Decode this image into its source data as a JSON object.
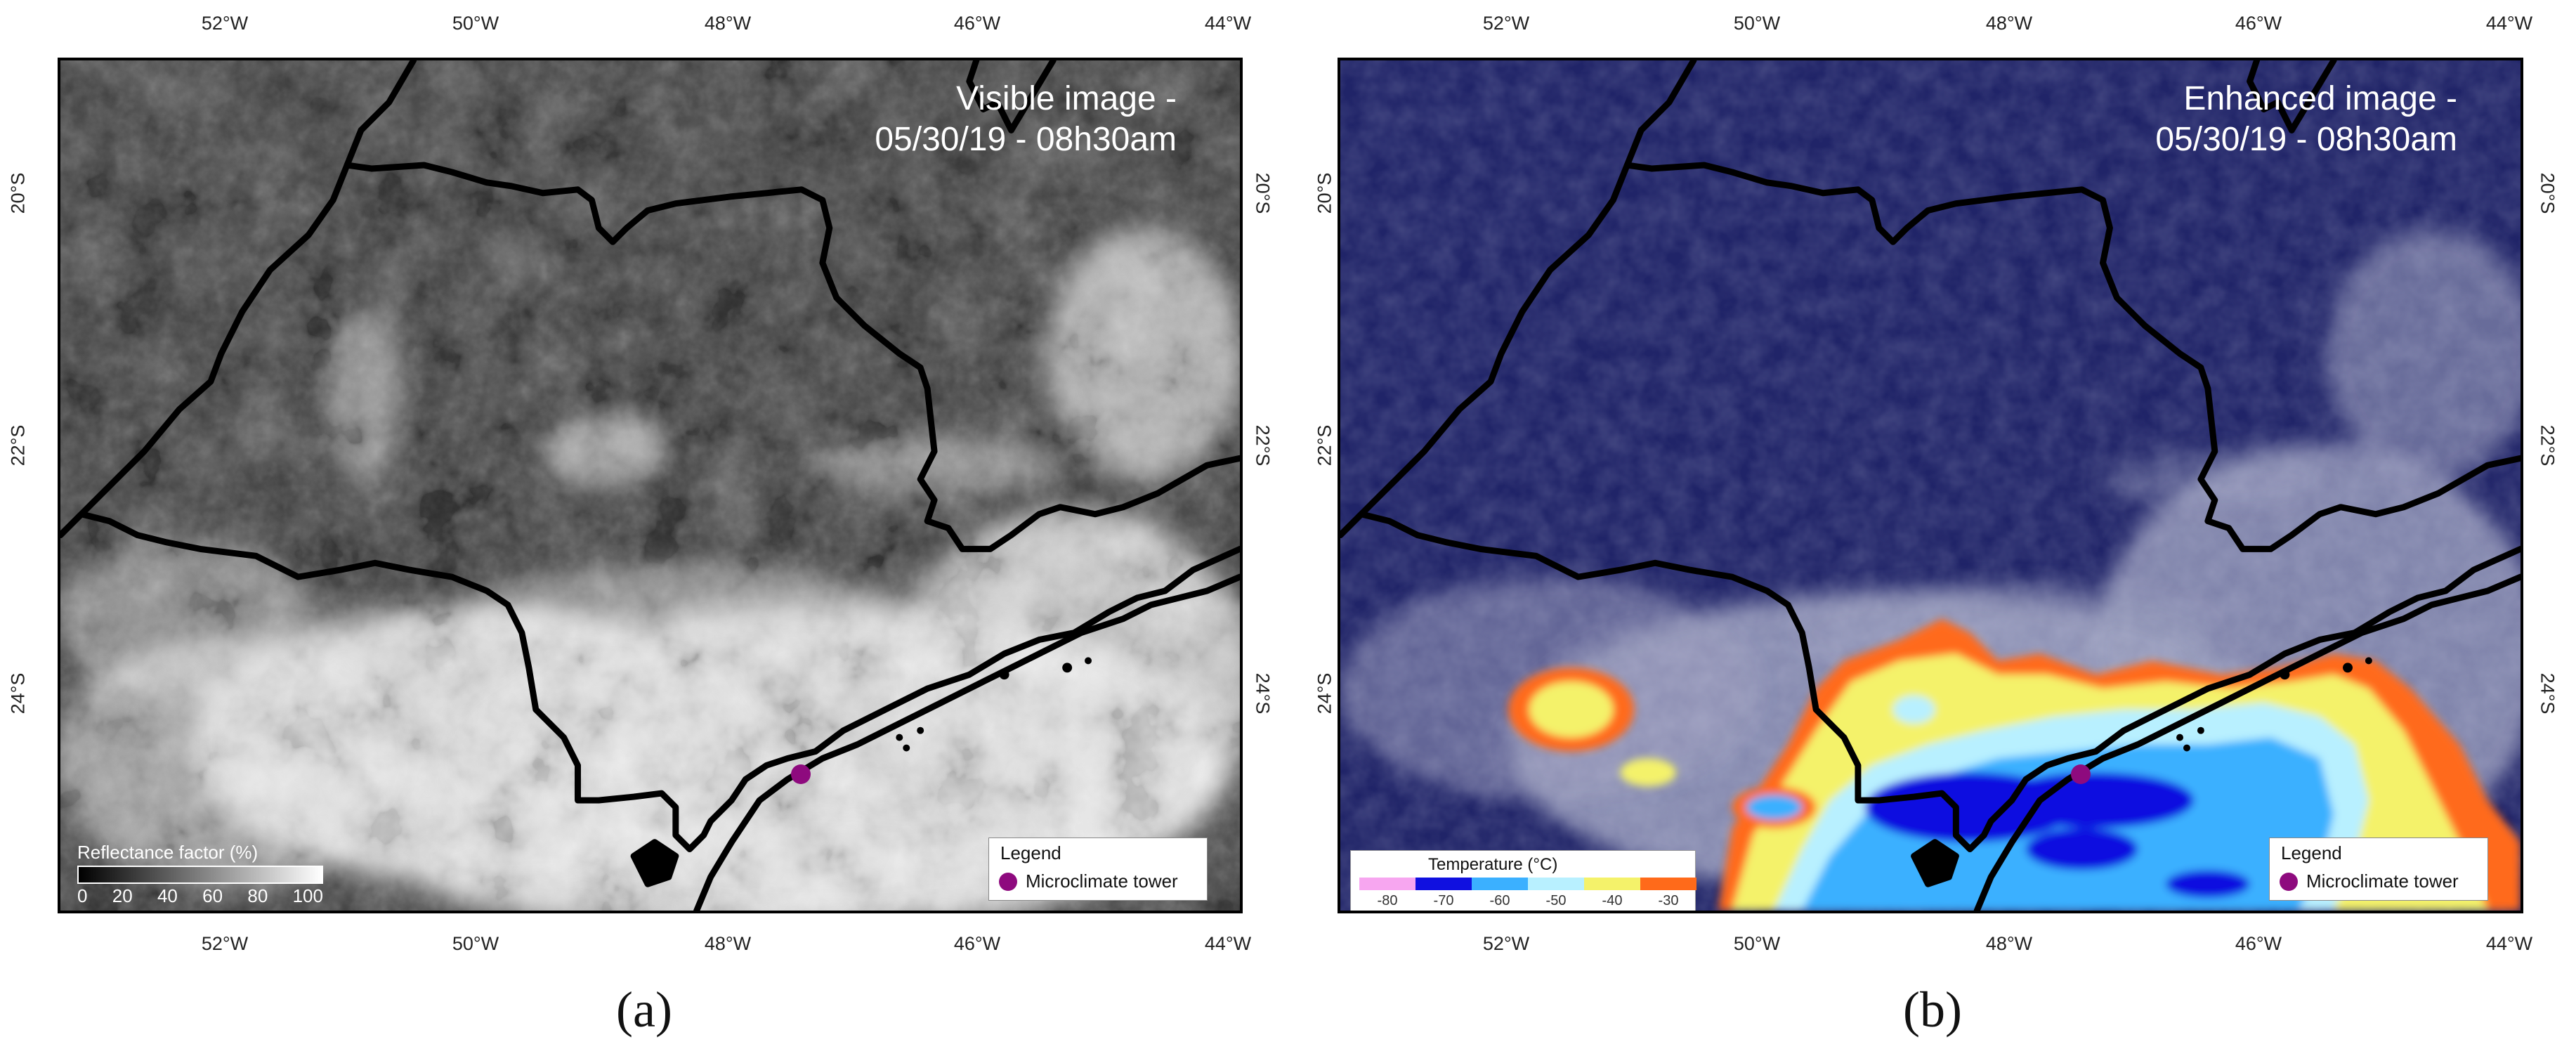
{
  "lon_ticks": [
    "52°W",
    "50°W",
    "48°W",
    "46°W",
    "44°W"
  ],
  "lat_ticks": [
    "20°S",
    "22°S",
    "24°S"
  ],
  "panel_a": {
    "title_line1": "Visible image -",
    "title_line2": "05/30/19 - 08h30am",
    "label": "(a)",
    "scale_title": "Reflectance factor (%)",
    "scale_ticks": [
      "0",
      "20",
      "40",
      "60",
      "80",
      "100"
    ],
    "legend_title": "Legend",
    "legend_item": "Microclimate tower"
  },
  "panel_b": {
    "title_line1": "Enhanced image -",
    "title_line2": "05/30/19 - 08h30am",
    "label": "(b)",
    "scale_title": "Temperature (°C)",
    "scale_ticks": [
      "-80",
      "-70",
      "-60",
      "-50",
      "-40",
      "-30"
    ],
    "scale_colors": [
      "#f7a6f0",
      "#1010e0",
      "#3bb0ff",
      "#b8f0ff",
      "#f4f26a",
      "#ff6a1a"
    ],
    "legend_title": "Legend",
    "legend_item": "Microclimate tower"
  },
  "colors": {
    "visible_background": "#3a3a3a",
    "enhanced_background": "#202468",
    "tower": "#8e0a7e",
    "borders": "#000000"
  }
}
